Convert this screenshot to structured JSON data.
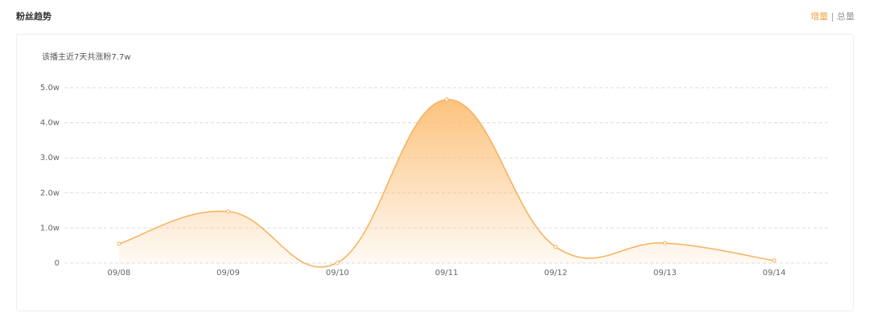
{
  "header": {
    "title": "粉丝趋势",
    "tabs": [
      "增量",
      "总量"
    ]
  },
  "chart_data": {
    "type": "line",
    "subtitle": "该播主近7天共涨粉7.7w",
    "categories": [
      "09/08",
      "09/09",
      "09/10",
      "09/11",
      "09/12",
      "09/13",
      "09/14"
    ],
    "series": [
      {
        "color": "#f7b05b",
        "values": [
          0.55,
          1.47,
          0.01,
          4.66,
          0.46,
          0.57,
          0.07
        ]
      }
    ],
    "ylim": [
      0,
      5
    ],
    "yticks": [
      0,
      {
        "value": 1,
        "label": "1.0w"
      },
      {
        "value": 2,
        "label": "2.0w"
      },
      {
        "value": 3,
        "label": "3.0w"
      },
      {
        "value": 4,
        "label": "4.0w"
      },
      {
        "value": 5,
        "label": "5.0w"
      }
    ],
    "grid": true
  }
}
